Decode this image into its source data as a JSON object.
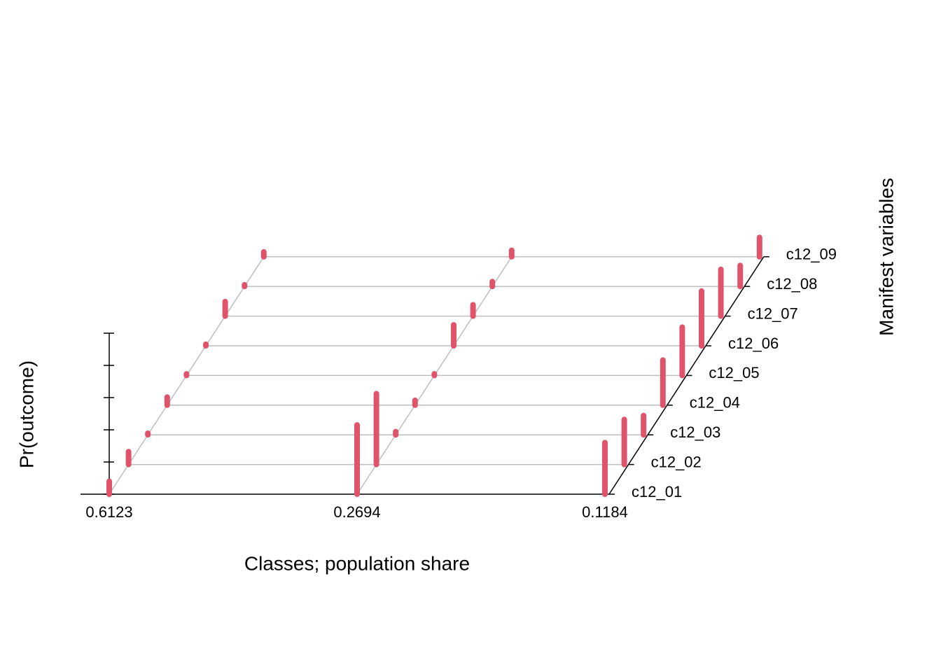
{
  "chart_data": {
    "type": "bar3d",
    "x_label": "Classes; population share",
    "y_label": "Manifest variables",
    "z_label": "Pr(outcome)",
    "categories": [
      "0.6123",
      "0.2694",
      "0.1184"
    ],
    "variables": [
      "c12_01",
      "c12_02",
      "c12_03",
      "c12_04",
      "c12_05",
      "c12_06",
      "c12_07",
      "c12_08",
      "c12_09"
    ],
    "values": [
      [
        0.08,
        0.08,
        0.01,
        0.05,
        0.01,
        0.01,
        0.09,
        0.01,
        0.03
      ],
      [
        0.43,
        0.44,
        0.02,
        0.03,
        0.01,
        0.13,
        0.07,
        0.03,
        0.04
      ],
      [
        0.32,
        0.28,
        0.12,
        0.28,
        0.3,
        0.34,
        0.29,
        0.13,
        0.12
      ]
    ],
    "color": "#df536b",
    "zlim": [
      0,
      1
    ],
    "zticks": [
      0,
      0.2,
      0.4,
      0.6,
      0.8,
      1
    ]
  }
}
